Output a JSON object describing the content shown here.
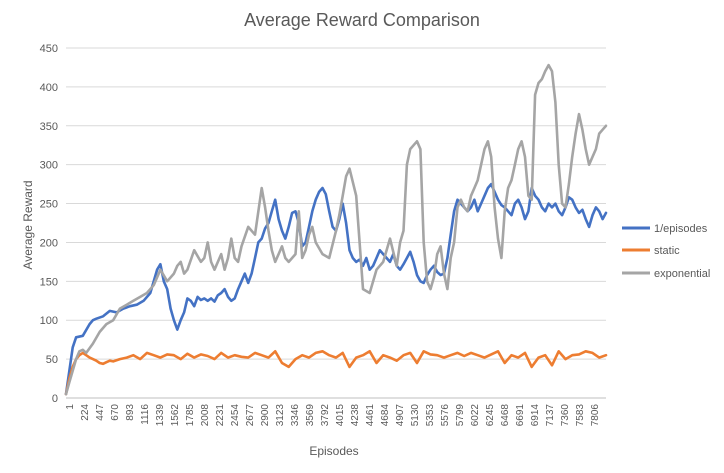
{
  "chart_data": {
    "type": "line",
    "title": "Average Reward Comparison",
    "xlabel": "Episodes",
    "ylabel": "Average Reward",
    "ylim": [
      0,
      450
    ],
    "yticks": [
      0,
      50,
      100,
      150,
      200,
      250,
      300,
      350,
      400,
      450
    ],
    "xlim": [
      1,
      8000
    ],
    "x_tick_labels": [
      "1",
      "224",
      "447",
      "670",
      "893",
      "1116",
      "1339",
      "1562",
      "1785",
      "2008",
      "2231",
      "2454",
      "2677",
      "2900",
      "3123",
      "3346",
      "3569",
      "3792",
      "4015",
      "4238",
      "4461",
      "4684",
      "4907",
      "5130",
      "5353",
      "5576",
      "5799",
      "6022",
      "6245",
      "6468",
      "6691",
      "6914",
      "7137",
      "7360",
      "7583",
      "7806"
    ],
    "grid": "horizontal",
    "legend_position": "right",
    "series": [
      {
        "name": "1/episodes",
        "color": "#4472C4",
        "x": [
          1,
          100,
          150,
          250,
          350,
          400,
          450,
          550,
          650,
          750,
          850,
          950,
          1050,
          1150,
          1250,
          1350,
          1400,
          1450,
          1500,
          1550,
          1600,
          1650,
          1700,
          1750,
          1800,
          1850,
          1900,
          1950,
          2000,
          2050,
          2100,
          2150,
          2200,
          2250,
          2300,
          2350,
          2400,
          2450,
          2500,
          2550,
          2600,
          2650,
          2700,
          2750,
          2800,
          2850,
          2900,
          2950,
          3000,
          3050,
          3100,
          3150,
          3200,
          3250,
          3300,
          3350,
          3400,
          3450,
          3500,
          3550,
          3600,
          3650,
          3700,
          3750,
          3800,
          3850,
          3900,
          3950,
          4000,
          4050,
          4100,
          4150,
          4200,
          4250,
          4300,
          4350,
          4400,
          4450,
          4500,
          4550,
          4600,
          4650,
          4700,
          4750,
          4800,
          4850,
          4900,
          4950,
          5000,
          5050,
          5100,
          5150,
          5200,
          5250,
          5300,
          5350,
          5400,
          5450,
          5500,
          5550,
          5600,
          5650,
          5700,
          5750,
          5800,
          5850,
          5900,
          5950,
          6000,
          6050,
          6100,
          6150,
          6200,
          6250,
          6300,
          6350,
          6400,
          6450,
          6500,
          6550,
          6600,
          6650,
          6700,
          6750,
          6800,
          6850,
          6900,
          6950,
          7000,
          7050,
          7100,
          7150,
          7200,
          7250,
          7300,
          7350,
          7400,
          7450,
          7500,
          7550,
          7600,
          7650,
          7700,
          7750,
          7800,
          7850,
          7900,
          7950,
          8000
        ],
        "y": [
          5,
          65,
          78,
          80,
          95,
          100,
          102,
          105,
          112,
          110,
          115,
          118,
          120,
          125,
          135,
          165,
          172,
          150,
          140,
          115,
          100,
          88,
          100,
          110,
          128,
          125,
          118,
          130,
          126,
          128,
          125,
          128,
          124,
          132,
          135,
          140,
          130,
          125,
          128,
          140,
          150,
          160,
          148,
          160,
          180,
          200,
          205,
          218,
          225,
          240,
          255,
          230,
          215,
          205,
          220,
          238,
          240,
          225,
          195,
          200,
          220,
          240,
          255,
          265,
          270,
          262,
          240,
          220,
          215,
          230,
          250,
          225,
          190,
          180,
          175,
          178,
          170,
          180,
          165,
          170,
          180,
          190,
          185,
          180,
          175,
          185,
          170,
          165,
          172,
          180,
          188,
          175,
          158,
          150,
          148,
          158,
          165,
          170,
          162,
          158,
          160,
          180,
          210,
          240,
          255,
          250,
          245,
          240,
          245,
          255,
          240,
          250,
          260,
          270,
          275,
          265,
          255,
          248,
          245,
          240,
          235,
          250,
          255,
          245,
          230,
          240,
          270,
          260,
          255,
          245,
          240,
          250,
          245,
          250,
          240,
          235,
          245,
          258,
          255,
          245,
          238,
          242,
          230,
          220,
          235,
          245,
          240,
          230,
          238
        ]
      },
      {
        "name": "static",
        "color": "#ED7D31",
        "x": [
          1,
          50,
          100,
          150,
          200,
          250,
          300,
          350,
          400,
          450,
          500,
          550,
          600,
          650,
          700,
          800,
          900,
          1000,
          1100,
          1200,
          1300,
          1400,
          1500,
          1600,
          1700,
          1800,
          1900,
          2000,
          2100,
          2200,
          2300,
          2400,
          2500,
          2600,
          2700,
          2800,
          2900,
          3000,
          3100,
          3200,
          3300,
          3400,
          3500,
          3600,
          3700,
          3800,
          3900,
          4000,
          4100,
          4200,
          4300,
          4400,
          4500,
          4600,
          4700,
          4800,
          4900,
          5000,
          5100,
          5200,
          5300,
          5400,
          5500,
          5600,
          5700,
          5800,
          5900,
          6000,
          6100,
          6200,
          6300,
          6400,
          6500,
          6600,
          6700,
          6800,
          6900,
          7000,
          7100,
          7200,
          7300,
          7400,
          7500,
          7600,
          7700,
          7800,
          7900,
          8000
        ],
        "y": [
          5,
          25,
          40,
          50,
          55,
          58,
          55,
          52,
          50,
          48,
          45,
          44,
          46,
          48,
          47,
          50,
          52,
          55,
          50,
          58,
          55,
          52,
          56,
          55,
          50,
          57,
          52,
          56,
          54,
          50,
          58,
          52,
          55,
          53,
          52,
          58,
          55,
          52,
          60,
          45,
          40,
          50,
          55,
          52,
          58,
          60,
          55,
          52,
          58,
          40,
          52,
          55,
          60,
          45,
          55,
          52,
          48,
          55,
          58,
          45,
          60,
          56,
          55,
          52,
          55,
          58,
          54,
          58,
          55,
          52,
          56,
          60,
          45,
          55,
          52,
          58,
          40,
          52,
          55,
          42,
          60,
          50,
          55,
          56,
          60,
          58,
          52,
          55
        ]
      },
      {
        "name": "exponential",
        "color": "#A5A5A5",
        "x": [
          1,
          50,
          100,
          150,
          200,
          250,
          300,
          400,
          500,
          600,
          700,
          800,
          900,
          1000,
          1100,
          1200,
          1300,
          1400,
          1500,
          1600,
          1650,
          1700,
          1750,
          1800,
          1900,
          2000,
          2050,
          2100,
          2150,
          2200,
          2300,
          2350,
          2400,
          2450,
          2500,
          2550,
          2600,
          2700,
          2800,
          2900,
          2950,
          3000,
          3050,
          3100,
          3150,
          3200,
          3250,
          3300,
          3400,
          3450,
          3500,
          3550,
          3600,
          3650,
          3700,
          3800,
          3900,
          4000,
          4050,
          4100,
          4150,
          4200,
          4300,
          4350,
          4400,
          4500,
          4600,
          4700,
          4800,
          4900,
          4950,
          5000,
          5050,
          5100,
          5150,
          5200,
          5250,
          5300,
          5350,
          5400,
          5450,
          5500,
          5550,
          5600,
          5650,
          5700,
          5750,
          5800,
          5850,
          5900,
          5950,
          6000,
          6050,
          6100,
          6150,
          6200,
          6250,
          6300,
          6350,
          6400,
          6450,
          6500,
          6550,
          6600,
          6650,
          6700,
          6750,
          6800,
          6850,
          6900,
          6950,
          7000,
          7050,
          7100,
          7150,
          7200,
          7250,
          7300,
          7350,
          7400,
          7450,
          7500,
          7550,
          7600,
          7650,
          7700,
          7750,
          7800,
          7850,
          7900,
          7950,
          8000
        ],
        "y": [
          5,
          20,
          35,
          50,
          60,
          62,
          58,
          70,
          85,
          95,
          100,
          115,
          120,
          125,
          130,
          135,
          145,
          165,
          150,
          160,
          170,
          175,
          160,
          165,
          190,
          175,
          180,
          200,
          175,
          165,
          185,
          165,
          180,
          205,
          180,
          175,
          195,
          220,
          210,
          270,
          245,
          215,
          190,
          175,
          185,
          195,
          180,
          175,
          185,
          240,
          180,
          190,
          210,
          220,
          200,
          185,
          180,
          215,
          235,
          260,
          285,
          295,
          260,
          200,
          140,
          135,
          165,
          175,
          205,
          170,
          200,
          215,
          300,
          320,
          325,
          330,
          320,
          200,
          150,
          140,
          155,
          185,
          195,
          160,
          140,
          180,
          200,
          245,
          255,
          245,
          240,
          260,
          270,
          280,
          300,
          320,
          330,
          310,
          245,
          205,
          180,
          240,
          270,
          280,
          300,
          320,
          330,
          310,
          260,
          255,
          390,
          405,
          410,
          420,
          428,
          420,
          380,
          300,
          250,
          245,
          275,
          310,
          340,
          365,
          345,
          320,
          300,
          310,
          320,
          340,
          345,
          350
        ]
      }
    ]
  }
}
